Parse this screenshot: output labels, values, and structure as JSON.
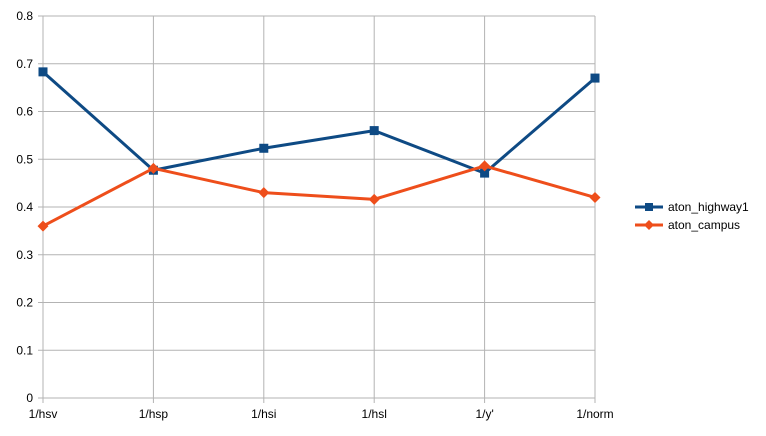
{
  "chart_data": {
    "type": "line",
    "title": "",
    "xlabel": "",
    "ylabel": "",
    "categories": [
      "1/hsv",
      "1/hsp",
      "1/hsi",
      "1/hsl",
      "1/y'",
      "1/norm"
    ],
    "ylim": [
      0,
      0.8
    ],
    "yticks": [
      "0",
      "0.1",
      "0.2",
      "0.3",
      "0.4",
      "0.5",
      "0.6",
      "0.7",
      "0.8"
    ],
    "grid": true,
    "legend_position": "right",
    "series": [
      {
        "name": "aton_highway1",
        "values": [
          0.683,
          0.477,
          0.523,
          0.56,
          0.471,
          0.67
        ],
        "color": "#0e4a84",
        "marker": "square"
      },
      {
        "name": "aton_campus",
        "values": [
          0.36,
          0.481,
          0.43,
          0.416,
          0.486,
          0.42
        ],
        "color": "#ee4e1b",
        "marker": "diamond"
      }
    ]
  }
}
